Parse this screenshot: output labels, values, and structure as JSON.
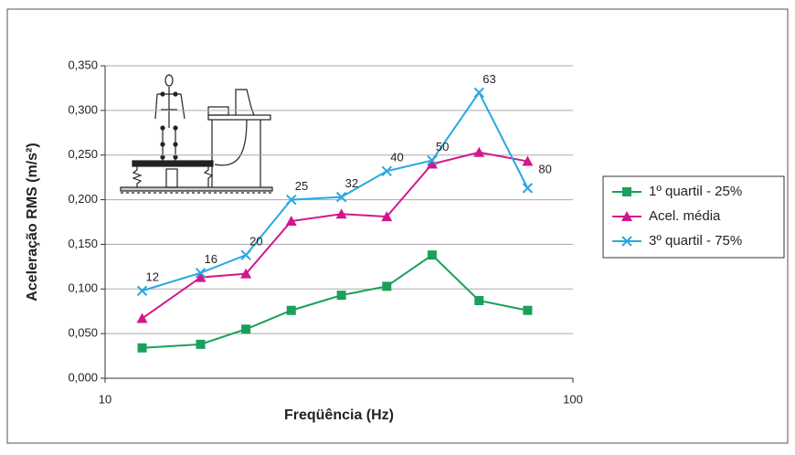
{
  "chart_data": {
    "type": "line",
    "x_label": "Freqüência (Hz)",
    "y_label": "Aceleração RMS (m/s²)",
    "x": [
      12,
      16,
      20,
      25,
      32,
      40,
      50,
      63,
      80
    ],
    "x_log": true,
    "xlim": [
      10,
      100
    ],
    "xticks": [
      10,
      100
    ],
    "ylim": [
      0,
      0.35
    ],
    "yticks": [
      {
        "value": 0,
        "label": "0,000"
      },
      {
        "value": 0.05,
        "label": "0,050"
      },
      {
        "value": 0.1,
        "label": "0,100"
      },
      {
        "value": 0.15,
        "label": "0,150"
      },
      {
        "value": 0.2,
        "label": "0,200"
      },
      {
        "value": 0.25,
        "label": "0,250"
      },
      {
        "value": 0.3,
        "label": "0,300"
      },
      {
        "value": 0.35,
        "label": "0,350"
      }
    ],
    "grid": true,
    "legend": "right",
    "series": [
      {
        "name": "1º quartil - 25%",
        "color": "#1aa05a",
        "marker": "square",
        "values": [
          0.034,
          0.038,
          0.055,
          0.076,
          0.093,
          0.103,
          0.138,
          0.087,
          0.076
        ]
      },
      {
        "name": "Acel. média",
        "color": "#d4168c",
        "marker": "triangle",
        "values": [
          0.067,
          0.113,
          0.117,
          0.176,
          0.184,
          0.181,
          0.24,
          0.253,
          0.243
        ]
      },
      {
        "name": "3º quartil - 75%",
        "color": "#29a8e0",
        "marker": "x",
        "point_labels": true,
        "values": [
          0.098,
          0.118,
          0.138,
          0.2,
          0.203,
          0.232,
          0.244,
          0.32,
          0.213
        ]
      }
    ]
  }
}
